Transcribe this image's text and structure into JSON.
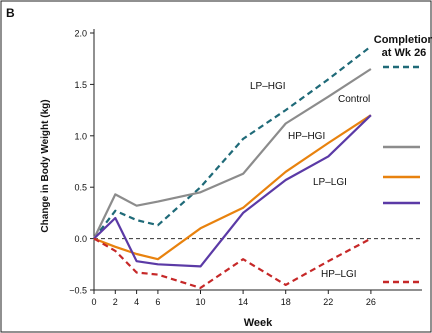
{
  "chart_data": {
    "type": "line",
    "panel_label": "B",
    "xlabel": "Week",
    "ylabel": "Change in Body Weight (kg)",
    "x_ticks": [
      0,
      2,
      4,
      6,
      10,
      14,
      18,
      22,
      26
    ],
    "y_ticks": [
      "2.0",
      "1.5",
      "1.0",
      "0.5",
      "0.0",
      "−0.5"
    ],
    "y_tick_values": [
      2.0,
      1.5,
      1.0,
      0.5,
      0.0,
      -0.5
    ],
    "xlim": [
      0,
      30
    ],
    "ylim": [
      -0.5,
      2.0
    ],
    "legend_title_line1": "Completion",
    "legend_title_line2": "at Wk 26",
    "legend_placement": "right",
    "grid": false,
    "reference_line": {
      "y": 0.0,
      "style": "dashed"
    },
    "series": [
      {
        "name": "LP–HGI",
        "color": "#1f6a78",
        "dash": "dashed",
        "x": [
          0,
          2,
          4,
          6,
          10,
          14,
          18,
          22,
          26
        ],
        "y": [
          0.0,
          0.27,
          0.18,
          0.13,
          0.5,
          0.97,
          1.25,
          1.55,
          1.87
        ]
      },
      {
        "name": "Control",
        "color": "#8c8c8c",
        "dash": "solid",
        "x": [
          0,
          2,
          4,
          6,
          10,
          14,
          18,
          22,
          26
        ],
        "y": [
          0.0,
          0.43,
          0.32,
          0.36,
          0.45,
          0.63,
          1.12,
          1.38,
          1.65
        ]
      },
      {
        "name": "HP–HGI",
        "color": "#e8820e",
        "dash": "solid",
        "x": [
          0,
          2,
          4,
          6,
          10,
          14,
          18,
          22,
          26
        ],
        "y": [
          0.0,
          -0.08,
          -0.15,
          -0.2,
          0.1,
          0.3,
          0.65,
          0.93,
          1.2
        ]
      },
      {
        "name": "LP–LGI",
        "color": "#5b3aa6",
        "dash": "solid",
        "x": [
          0,
          2,
          4,
          6,
          10,
          14,
          18,
          22,
          26
        ],
        "y": [
          0.0,
          0.2,
          -0.22,
          -0.25,
          -0.27,
          0.25,
          0.57,
          0.8,
          1.2
        ]
      },
      {
        "name": "HP–LGI",
        "color": "#c62828",
        "dash": "dashed",
        "x": [
          0,
          2,
          4,
          6,
          10,
          14,
          18,
          22,
          26
        ],
        "y": [
          0.0,
          -0.12,
          -0.33,
          -0.35,
          -0.48,
          -0.2,
          -0.45,
          -0.22,
          0.0
        ]
      }
    ]
  }
}
